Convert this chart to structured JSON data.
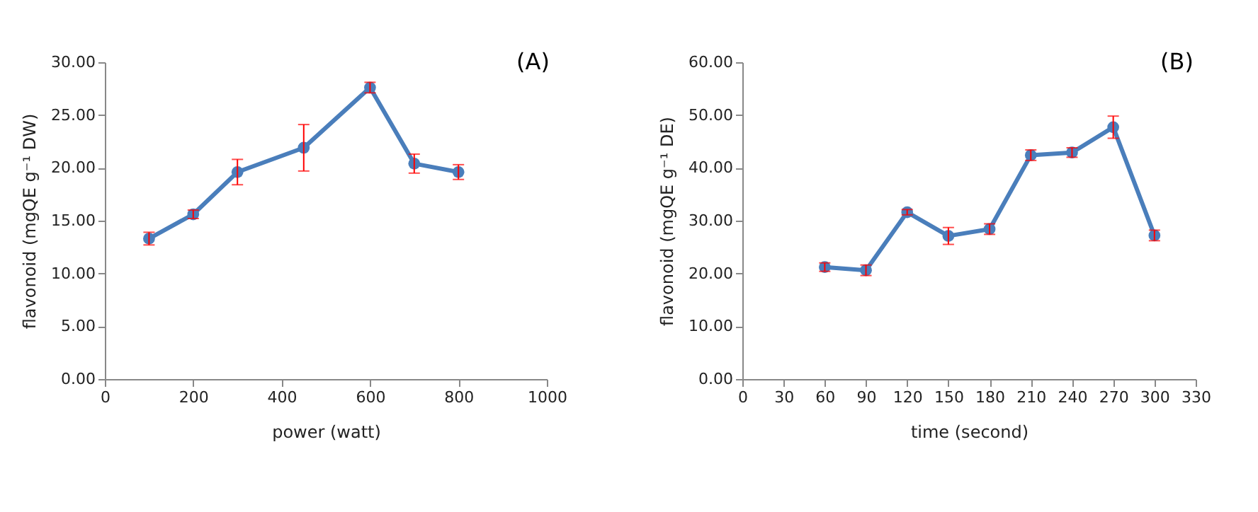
{
  "chart_data": [
    {
      "type": "line",
      "title": "(A)",
      "xlabel": "power (watt)",
      "ylabel": "flavonoid (mgQE g⁻¹ DW)",
      "x": [
        100,
        200,
        300,
        450,
        600,
        700,
        800
      ],
      "series": [
        {
          "color": "#4a7ebb",
          "values": [
            13.3,
            15.6,
            19.6,
            21.9,
            27.6,
            20.4,
            19.6
          ],
          "errors": [
            0.6,
            0.4,
            1.2,
            2.2,
            0.5,
            0.9,
            0.7
          ]
        }
      ],
      "xlim": [
        0,
        1000
      ],
      "xticks": [
        0,
        200,
        400,
        600,
        800,
        1000
      ],
      "ylim": [
        0,
        30
      ],
      "yticks": [
        {
          "value": 0,
          "label": "0.00"
        },
        {
          "value": 5,
          "label": "5.00"
        },
        {
          "value": 10,
          "label": "10.00"
        },
        {
          "value": 15,
          "label": "15.00"
        },
        {
          "value": 20,
          "label": "20.00"
        },
        {
          "value": 25,
          "label": "25.00"
        },
        {
          "value": 30,
          "label": "30.00"
        }
      ],
      "grid": false,
      "marker": "circle",
      "line_style": "solid"
    },
    {
      "type": "line",
      "title": "(B)",
      "xlabel": "time (second)",
      "ylabel": "flavonoid (mgQE g⁻¹ DE)",
      "x": [
        60,
        90,
        120,
        150,
        180,
        210,
        240,
        270,
        300
      ],
      "series": [
        {
          "color": "#4a7ebb",
          "values": [
            21.2,
            20.6,
            31.6,
            27.1,
            28.4,
            42.4,
            42.9,
            47.7,
            27.2
          ],
          "errors": [
            0.8,
            1.0,
            0.5,
            1.6,
            1.0,
            1.0,
            0.9,
            2.1,
            1.0
          ]
        }
      ],
      "xlim": [
        0,
        330
      ],
      "xticks": [
        0,
        30,
        60,
        90,
        120,
        150,
        180,
        210,
        240,
        270,
        300,
        330
      ],
      "ylim": [
        0,
        60
      ],
      "yticks": [
        {
          "value": 0,
          "label": "0.00"
        },
        {
          "value": 10,
          "label": "10.00"
        },
        {
          "value": 20,
          "label": "20.00"
        },
        {
          "value": 30,
          "label": "30.00"
        },
        {
          "value": 40,
          "label": "40.00"
        },
        {
          "value": 50,
          "label": "50.00"
        },
        {
          "value": 60,
          "label": "60.00"
        }
      ],
      "grid": false,
      "marker": "circle",
      "line_style": "solid"
    }
  ]
}
